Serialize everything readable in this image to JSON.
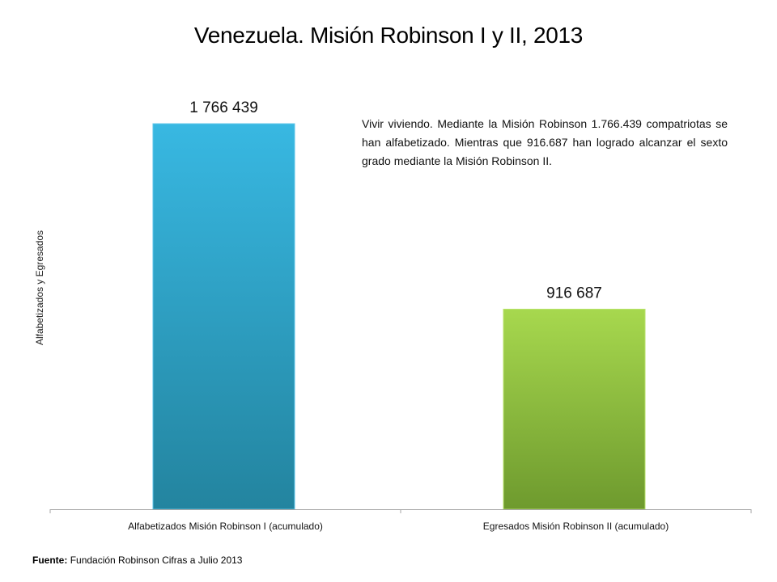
{
  "chart_data": {
    "type": "bar",
    "title": "Venezuela. Misión Robinson I y II, 2013",
    "xlabel": "",
    "ylabel": "Alfabetizados y Egresados",
    "categories": [
      "Alfabetizados Misión Robinson I (acumulado)",
      "Egresados Misión Robinson II (acumulado)"
    ],
    "values": [
      1766439,
      916687
    ],
    "data_labels": [
      "1 766 439",
      "916 687"
    ],
    "colors": [
      "#2e9dc4",
      "#8cc63f"
    ],
    "ylim": [
      0,
      2000000
    ],
    "grid": false,
    "legend": "none"
  },
  "annotation": "Vivir viviendo. Mediante la Misión Robinson 1.766.439 compatriotas se han alfabetizado. Mientras que 916.687 han logrado alcanzar el sexto grado mediante la Misión Robinson II.",
  "footer": {
    "label": "Fuente:",
    "text": "Fundación Robinson   Cifras  a Julio 2013"
  }
}
